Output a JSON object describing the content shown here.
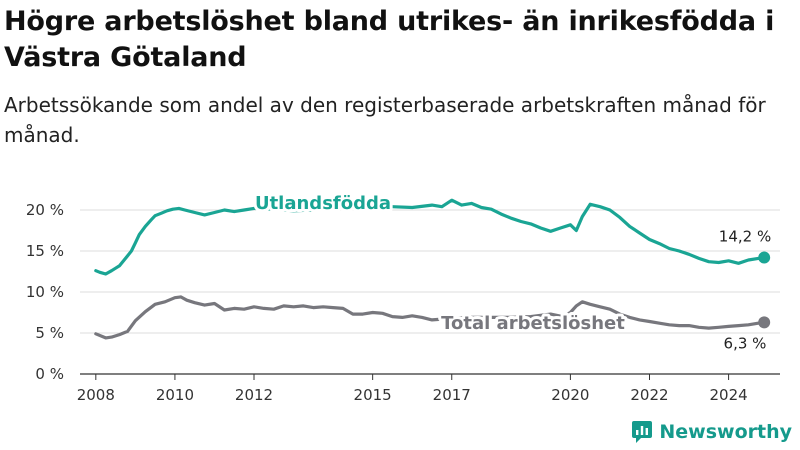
{
  "title": "Högre arbetslöshet bland utrikes- än inrikesfödda i Västra Götaland",
  "subtitle": "Arbetssökande som andel av den registerbaserade arbetskraften månad för månad.",
  "brand": {
    "name": "Newsworthy",
    "color": "#159a8c"
  },
  "chart_data": {
    "type": "line",
    "x_ticks": [
      "2008",
      "2010",
      "2012",
      "2015",
      "2017",
      "2020",
      "2022",
      "2024"
    ],
    "x_tick_years": [
      2008,
      2010,
      2012,
      2015,
      2017,
      2020,
      2022,
      2024
    ],
    "y_ticks": [
      "0 %",
      "5 %",
      "10 %",
      "15 %",
      "20 %"
    ],
    "y_tick_values": [
      0,
      5,
      10,
      15,
      20
    ],
    "xlim": [
      2007.6,
      2025.3
    ],
    "ylim": [
      0,
      20
    ],
    "grid": true,
    "series": [
      {
        "name": "Utlandsfödda",
        "color": "#1aa594",
        "end_label": "14,2 %",
        "x": [
          2008.0,
          2008.1,
          2008.25,
          2008.4,
          2008.5,
          2008.6,
          2008.75,
          2008.9,
          2009.0,
          2009.1,
          2009.25,
          2009.4,
          2009.5,
          2009.65,
          2009.8,
          2009.95,
          2010.1,
          2010.25,
          2010.5,
          2010.75,
          2011.0,
          2011.25,
          2011.5,
          2011.75,
          2012.0,
          2012.5,
          2013.0,
          2013.5,
          2014.0,
          2014.5,
          2015.0,
          2015.5,
          2016.0,
          2016.5,
          2016.75,
          2017.0,
          2017.25,
          2017.5,
          2017.75,
          2018.0,
          2018.25,
          2018.5,
          2018.75,
          2019.0,
          2019.25,
          2019.5,
          2019.75,
          2020.0,
          2020.15,
          2020.3,
          2020.5,
          2020.75,
          2021.0,
          2021.25,
          2021.5,
          2021.75,
          2022.0,
          2022.25,
          2022.5,
          2022.75,
          2023.0,
          2023.25,
          2023.5,
          2023.75,
          2024.0,
          2024.25,
          2024.5,
          2024.75,
          2024.9
        ],
        "y": [
          12.6,
          12.4,
          12.2,
          12.6,
          12.9,
          13.2,
          14.1,
          15.0,
          16.0,
          17.0,
          18.0,
          18.8,
          19.3,
          19.6,
          19.9,
          20.1,
          20.2,
          20.0,
          19.7,
          19.4,
          19.7,
          20.0,
          19.8,
          20.0,
          20.2,
          20.1,
          19.9,
          20.0,
          20.2,
          20.3,
          20.5,
          20.4,
          20.3,
          20.6,
          20.4,
          21.2,
          20.6,
          20.8,
          20.3,
          20.1,
          19.5,
          19.0,
          18.6,
          18.3,
          17.8,
          17.4,
          17.8,
          18.2,
          17.5,
          19.2,
          20.7,
          20.4,
          20.0,
          19.1,
          18.0,
          17.2,
          16.4,
          15.9,
          15.3,
          15.0,
          14.6,
          14.1,
          13.7,
          13.6,
          13.8,
          13.5,
          13.9,
          14.1,
          14.2
        ]
      },
      {
        "name": "Total arbetslöshet",
        "color": "#77777d",
        "end_label": "6,3 %",
        "x": [
          2008.0,
          2008.25,
          2008.4,
          2008.6,
          2008.8,
          2009.0,
          2009.25,
          2009.5,
          2009.75,
          2010.0,
          2010.15,
          2010.3,
          2010.5,
          2010.75,
          2011.0,
          2011.25,
          2011.5,
          2011.75,
          2012.0,
          2012.25,
          2012.5,
          2012.75,
          2013.0,
          2013.25,
          2013.5,
          2013.75,
          2014.0,
          2014.25,
          2014.5,
          2014.75,
          2015.0,
          2015.25,
          2015.5,
          2015.75,
          2016.0,
          2016.25,
          2016.5,
          2016.75,
          2017.0,
          2017.5,
          2018.0,
          2018.5,
          2019.0,
          2019.5,
          2019.8,
          2020.0,
          2020.15,
          2020.3,
          2020.5,
          2020.75,
          2021.0,
          2021.25,
          2021.5,
          2021.75,
          2022.0,
          2022.25,
          2022.5,
          2022.75,
          2023.0,
          2023.25,
          2023.5,
          2023.75,
          2024.0,
          2024.25,
          2024.5,
          2024.75,
          2024.9
        ],
        "y": [
          4.9,
          4.4,
          4.5,
          4.8,
          5.2,
          6.5,
          7.6,
          8.5,
          8.8,
          9.3,
          9.4,
          9.0,
          8.7,
          8.4,
          8.6,
          7.8,
          8.0,
          7.9,
          8.2,
          8.0,
          7.9,
          8.3,
          8.2,
          8.3,
          8.1,
          8.2,
          8.1,
          8.0,
          7.3,
          7.3,
          7.5,
          7.4,
          7.0,
          6.9,
          7.1,
          6.9,
          6.6,
          6.7,
          6.8,
          6.9,
          6.9,
          6.9,
          7.0,
          7.3,
          7.0,
          7.5,
          8.3,
          8.8,
          8.5,
          8.2,
          7.9,
          7.3,
          6.9,
          6.6,
          6.4,
          6.2,
          6.0,
          5.9,
          5.9,
          5.7,
          5.6,
          5.7,
          5.8,
          5.9,
          6.0,
          6.2,
          6.3
        ]
      }
    ]
  }
}
